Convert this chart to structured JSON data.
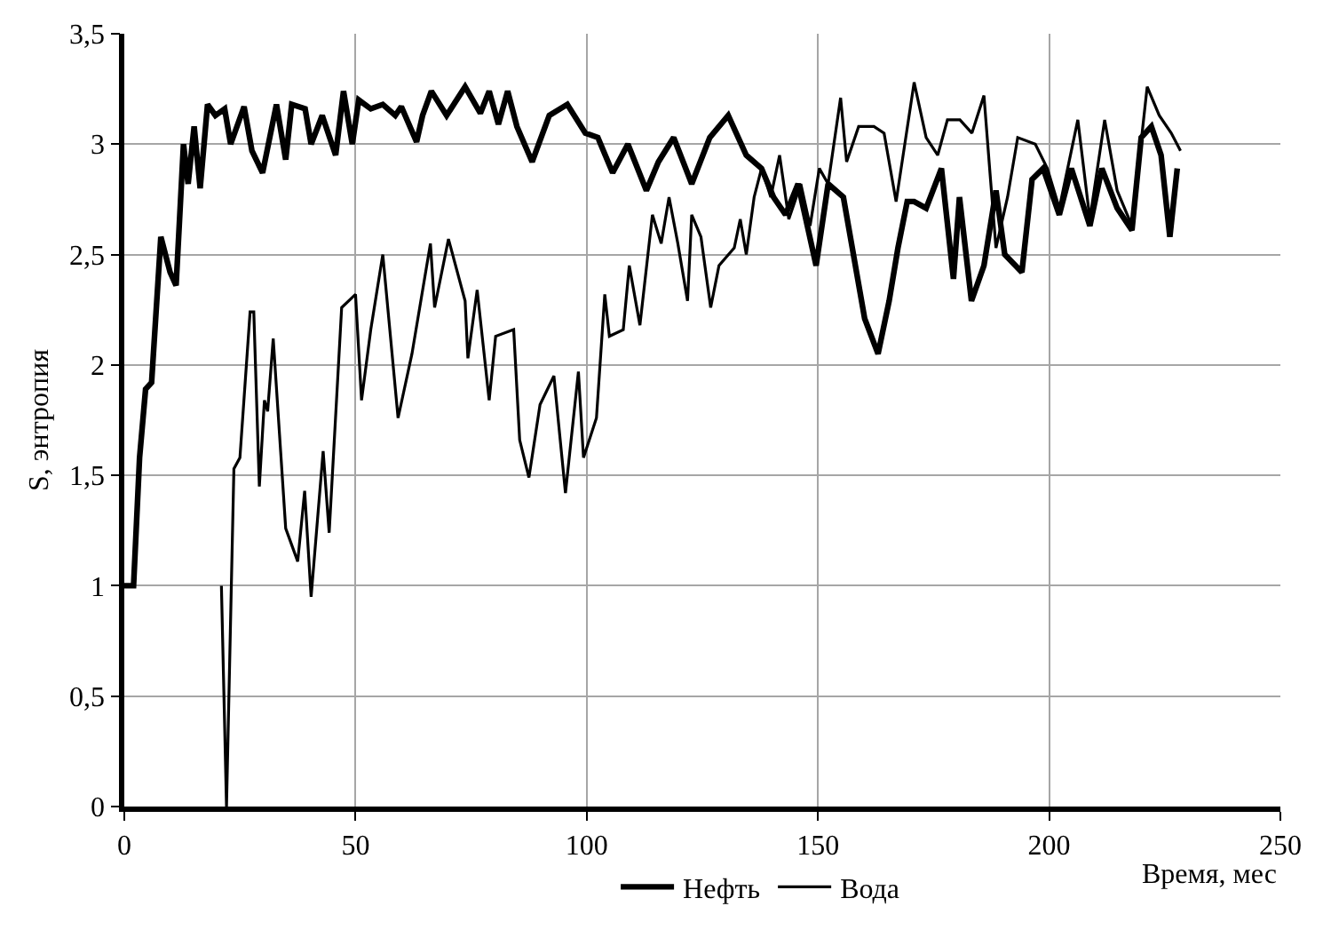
{
  "chart_data": {
    "type": "line",
    "xlabel": "Время, мес",
    "ylabel": "S, энтропия",
    "xlim": [
      0,
      250
    ],
    "xticks": [
      0,
      50,
      100,
      150,
      200,
      250
    ],
    "ylim": [
      0,
      3.5
    ],
    "yticks": [
      0,
      {
        "value": 0.5,
        "label": "0,5"
      },
      1,
      {
        "value": 1.5,
        "label": "1,5"
      },
      2,
      {
        "value": 2.5,
        "label": "2,5"
      },
      3,
      {
        "value": 3.5,
        "label": "3,5"
      }
    ],
    "grid": true,
    "legend": "bottom",
    "marker": "none",
    "line_style": "solid",
    "series": [
      {
        "name": "Нефть",
        "color": "#000000",
        "x": [
          0,
          2,
          3.3,
          4.6,
          5.9,
          7.9,
          9.9,
          11.2,
          12.8,
          13.8,
          15.1,
          16.4,
          18,
          19.7,
          21.7,
          23,
          25.9,
          27.6,
          29.9,
          32.9,
          34.9,
          36.2,
          39.1,
          40.4,
          42.8,
          45.7,
          47.4,
          49.3,
          50.7,
          53.3,
          55.9,
          58.6,
          59.9,
          63.2,
          64.5,
          66.4,
          69.7,
          73.7,
          77,
          78.9,
          80.9,
          82.9,
          84.9,
          88.2,
          91.9,
          95.8,
          99.7,
          102.4,
          105.6,
          108.9,
          112.9,
          115.5,
          118.8,
          122.7,
          126.6,
          130.6,
          134.5,
          137.8,
          140.4,
          143,
          145.7,
          149.6,
          152.2,
          155.5,
          160.1,
          163,
          165.4,
          167.3,
          169.3,
          170.8,
          173.4,
          176.7,
          179.3,
          180.6,
          183.2,
          185.9,
          188.5,
          190.4,
          194.1,
          196.3,
          198.7,
          202.2,
          204.8,
          208.8,
          211.4,
          214.7,
          217.9,
          219.9,
          222.1,
          224.2,
          226.1,
          227.7
        ],
        "values": [
          1.0,
          1.0,
          1.58,
          1.89,
          1.92,
          2.58,
          2.42,
          2.36,
          3.0,
          2.82,
          3.08,
          2.8,
          3.18,
          3.13,
          3.16,
          3.0,
          3.17,
          2.97,
          2.87,
          3.18,
          2.93,
          3.18,
          3.16,
          3.0,
          3.13,
          2.95,
          3.24,
          3.0,
          3.2,
          3.16,
          3.18,
          3.13,
          3.17,
          3.01,
          3.13,
          3.24,
          3.13,
          3.26,
          3.14,
          3.24,
          3.09,
          3.24,
          3.08,
          2.92,
          3.13,
          3.18,
          3.05,
          3.03,
          2.87,
          3.0,
          2.79,
          2.92,
          3.03,
          2.82,
          3.03,
          3.13,
          2.95,
          2.89,
          2.76,
          2.68,
          2.82,
          2.45,
          2.82,
          2.76,
          2.21,
          2.05,
          2.29,
          2.53,
          2.74,
          2.74,
          2.71,
          2.89,
          2.39,
          2.76,
          2.29,
          2.45,
          2.79,
          2.5,
          2.42,
          2.84,
          2.89,
          2.68,
          2.89,
          2.63,
          2.89,
          2.71,
          2.61,
          3.03,
          3.08,
          2.95,
          2.58,
          2.89
        ]
      },
      {
        "name": "Вода",
        "color": "#000000",
        "x": [
          21,
          22.1,
          23.7,
          25,
          27.2,
          28,
          29.2,
          30.3,
          31,
          32.2,
          34.9,
          37.5,
          39,
          40.4,
          43,
          44.3,
          47,
          50,
          51.3,
          53.3,
          55.9,
          59.2,
          62.2,
          66.2,
          67.1,
          70.1,
          73.7,
          74.3,
          76.3,
          78.9,
          80.3,
          84.2,
          85.5,
          87.5,
          89.9,
          92.9,
          95.4,
          98.2,
          99.3,
          102.1,
          103.9,
          104.9,
          107.9,
          109.2,
          111.5,
          114.2,
          116.1,
          117.8,
          119.7,
          121.8,
          122.7,
          124.7,
          126.8,
          128.6,
          131.9,
          133.2,
          134.5,
          136.2,
          137.8,
          139.8,
          141.7,
          143.7,
          146.3,
          148.3,
          150.3,
          152.2,
          154.9,
          156.2,
          158.8,
          162.1,
          164.3,
          166.9,
          170.8,
          173.4,
          175.9,
          178,
          180.7,
          183.3,
          185.9,
          187.2,
          188.5,
          191,
          193.2,
          197,
          199.6,
          202.2,
          206.2,
          208.8,
          212,
          214.7,
          217.9,
          221.2,
          223.8,
          226.4,
          228.4
        ],
        "values": [
          1.0,
          0,
          1.53,
          1.58,
          2.24,
          2.24,
          1.45,
          1.84,
          1.79,
          2.12,
          1.26,
          1.11,
          1.43,
          0.95,
          1.61,
          1.24,
          2.26,
          2.32,
          1.84,
          2.16,
          2.5,
          1.76,
          2.05,
          2.55,
          2.26,
          2.57,
          2.29,
          2.03,
          2.34,
          1.84,
          2.13,
          2.16,
          1.66,
          1.49,
          1.82,
          1.95,
          1.42,
          1.97,
          1.58,
          1.76,
          2.32,
          2.13,
          2.16,
          2.45,
          2.18,
          2.68,
          2.55,
          2.76,
          2.55,
          2.29,
          2.68,
          2.58,
          2.26,
          2.45,
          2.53,
          2.66,
          2.5,
          2.76,
          2.89,
          2.76,
          2.95,
          2.66,
          2.82,
          2.63,
          2.89,
          2.82,
          3.21,
          2.92,
          3.08,
          3.08,
          3.05,
          2.74,
          3.28,
          3.03,
          2.95,
          3.11,
          3.11,
          3.05,
          3.22,
          2.87,
          2.53,
          2.76,
          3.03,
          3.0,
          2.89,
          2.71,
          3.11,
          2.66,
          3.11,
          2.79,
          2.63,
          3.26,
          3.13,
          3.05,
          2.97
        ]
      }
    ]
  }
}
